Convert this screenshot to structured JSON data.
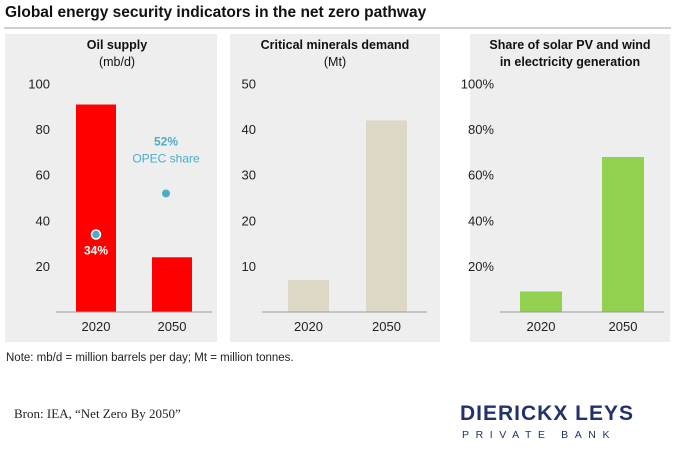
{
  "header": {
    "title": "Global energy security indicators in the net zero pathway"
  },
  "colors": {
    "oil": "#ff0000",
    "minerals": "#dcd8c5",
    "solar": "#92d050",
    "opec_dot": "#4bacc6",
    "axis_text": "#222222",
    "logo": "#23326b"
  },
  "chart_data": [
    {
      "type": "bar",
      "title": "Oil supply",
      "subtitle": "(mb/d)",
      "categories": [
        "2020",
        "2050"
      ],
      "values": [
        91,
        24
      ],
      "ylim": [
        0,
        100
      ],
      "yticks": [
        20,
        40,
        60,
        80,
        100
      ],
      "ytick_labels": [
        "20",
        "40",
        "60",
        "80",
        "100"
      ],
      "grid": false,
      "overlay_points": {
        "name": "OPEC share",
        "values_percent": [
          34,
          52
        ],
        "labels": [
          "34%",
          "52%"
        ]
      }
    },
    {
      "type": "bar",
      "title": "Critical minerals demand",
      "subtitle": "(Mt)",
      "categories": [
        "2020",
        "2050"
      ],
      "values": [
        7,
        42
      ],
      "ylim": [
        0,
        50
      ],
      "yticks": [
        10,
        20,
        30,
        40,
        50
      ],
      "ytick_labels": [
        "10",
        "20",
        "30",
        "40",
        "50"
      ],
      "grid": false
    },
    {
      "type": "bar",
      "title": "Share of solar PV and wind",
      "subtitle": "in electricity generation",
      "categories": [
        "2020",
        "2050"
      ],
      "values": [
        9,
        68
      ],
      "ylim": [
        0,
        100
      ],
      "yticks": [
        20,
        40,
        60,
        80,
        100
      ],
      "ytick_labels": [
        "20%",
        "40%",
        "60%",
        "80%",
        "100%"
      ],
      "grid": false
    }
  ],
  "footer": {
    "note": "Note: mb/d = million barrels per day; Mt = million tonnes.",
    "source": "Bron: IEA, “Net Zero By 2050”",
    "logo_name": "DIERICKX LEYS",
    "logo_sub": "PRIVATE BANK"
  }
}
